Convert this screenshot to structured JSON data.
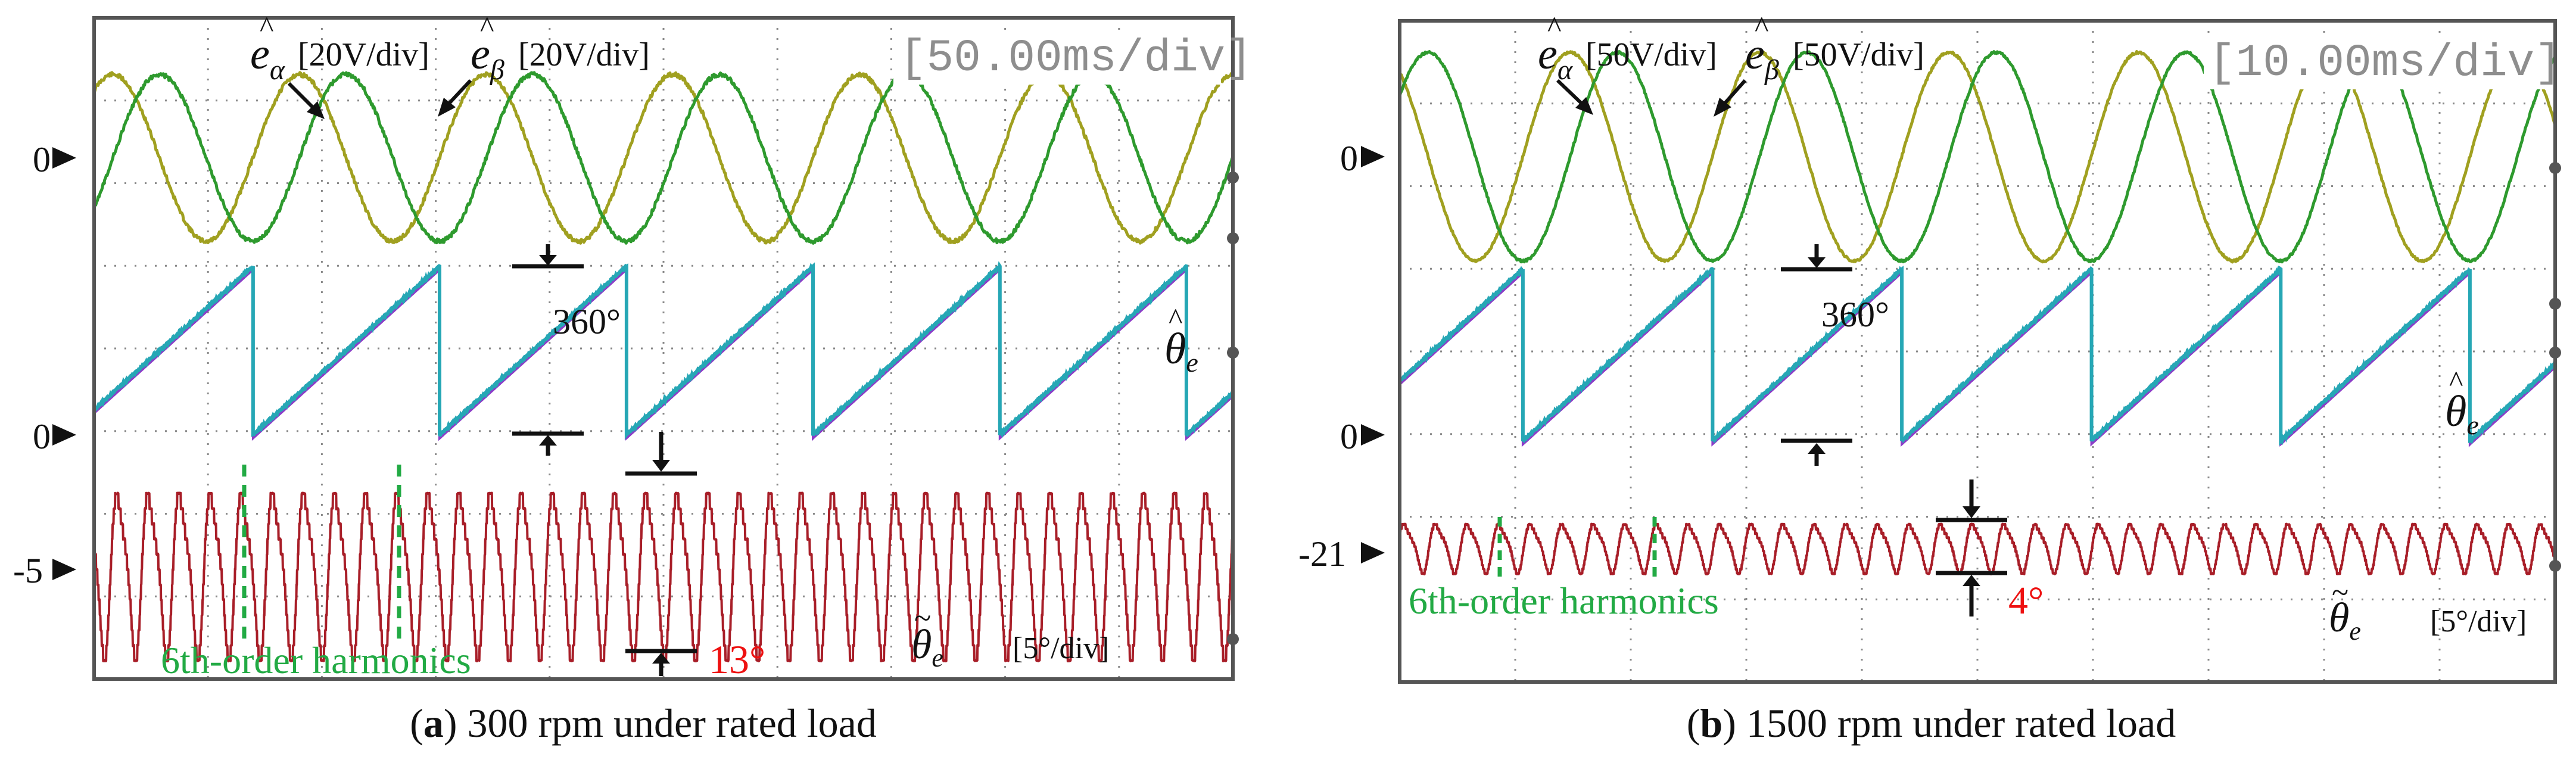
{
  "panels": [
    {
      "id": "a",
      "caption_letter": "a",
      "caption_text": "300 rpm under rated load",
      "timebase": "[50.00ms/div]",
      "label_ealpha": "[20V/div]",
      "label_ebeta": "[20V/div]",
      "label_theta_err": "[5°/div]",
      "label_360": "360°",
      "label_harmonics": "6th-order harmonics",
      "label_amp": "13°",
      "marker_emf": "0",
      "marker_theta": "0",
      "marker_err": "-5"
    },
    {
      "id": "b",
      "caption_letter": "b",
      "caption_text": "1500 rpm under rated load",
      "timebase": "[10.00ms/div]",
      "label_ealpha": "[50V/div]",
      "label_ebeta": "[50V/div]",
      "label_theta_err": "[5°/div]",
      "label_360": "360°",
      "label_harmonics": "6th-order harmonics",
      "label_amp": "4°",
      "marker_emf": "0",
      "marker_theta": "0",
      "marker_err": "-21"
    }
  ],
  "chart_data": [
    {
      "type": "line",
      "title": "(a) 300 rpm under rated load",
      "time_per_div_ms": 50,
      "divisions": 10,
      "series": [
        {
          "name": "ê_alpha",
          "unit": "V",
          "scale_per_div": 20,
          "periods_on_screen": 6.1,
          "amplitude_div": 1.2,
          "color": "#a0a020"
        },
        {
          "name": "ê_beta",
          "unit": "V",
          "scale_per_div": 20,
          "periods_on_screen": 6.1,
          "amplitude_div": 1.2,
          "color": "#2e9a2e"
        },
        {
          "name": "θ̂_e",
          "unit": "deg",
          "range_deg": [
            0,
            360
          ],
          "periods_on_screen": 6.1,
          "color": "#26a7b5"
        },
        {
          "name": "θ̃_e",
          "unit": "deg",
          "scale_per_div": 5,
          "offset_deg": -5,
          "ripple_pp_deg": 13,
          "harmonic_order": 6,
          "color": "#a81e28"
        }
      ],
      "colors": {
        "alpha": "#a0a020",
        "beta": "#2e9a2e",
        "theta": "#26a7b5",
        "theta_ref": "#8c3cc8",
        "err": "#a81e28",
        "red": "#ee1111",
        "harm": "#22aa44"
      }
    },
    {
      "type": "line",
      "title": "(b) 1500 rpm under rated load",
      "time_per_div_ms": 10,
      "divisions": 10,
      "series": [
        {
          "name": "ê_alpha",
          "unit": "V",
          "scale_per_div": 50,
          "periods_on_screen": 6.1,
          "amplitude_div": 1.5,
          "color": "#a0a020"
        },
        {
          "name": "ê_beta",
          "unit": "V",
          "scale_per_div": 50,
          "periods_on_screen": 6.1,
          "amplitude_div": 1.5,
          "color": "#2e9a2e"
        },
        {
          "name": "θ̂_e",
          "unit": "deg",
          "range_deg": [
            0,
            360
          ],
          "periods_on_screen": 6.1,
          "color": "#26a7b5"
        },
        {
          "name": "θ̃_e",
          "unit": "deg",
          "scale_per_div": 5,
          "offset_deg": -21,
          "ripple_pp_deg": 4,
          "harmonic_order": 6,
          "color": "#a81e28"
        }
      ],
      "colors": {
        "alpha": "#a0a020",
        "beta": "#2e9a2e",
        "theta": "#26a7b5",
        "theta_ref": "#8c3cc8",
        "err": "#a81e28",
        "red": "#ee1111",
        "harm": "#22aa44"
      }
    }
  ]
}
